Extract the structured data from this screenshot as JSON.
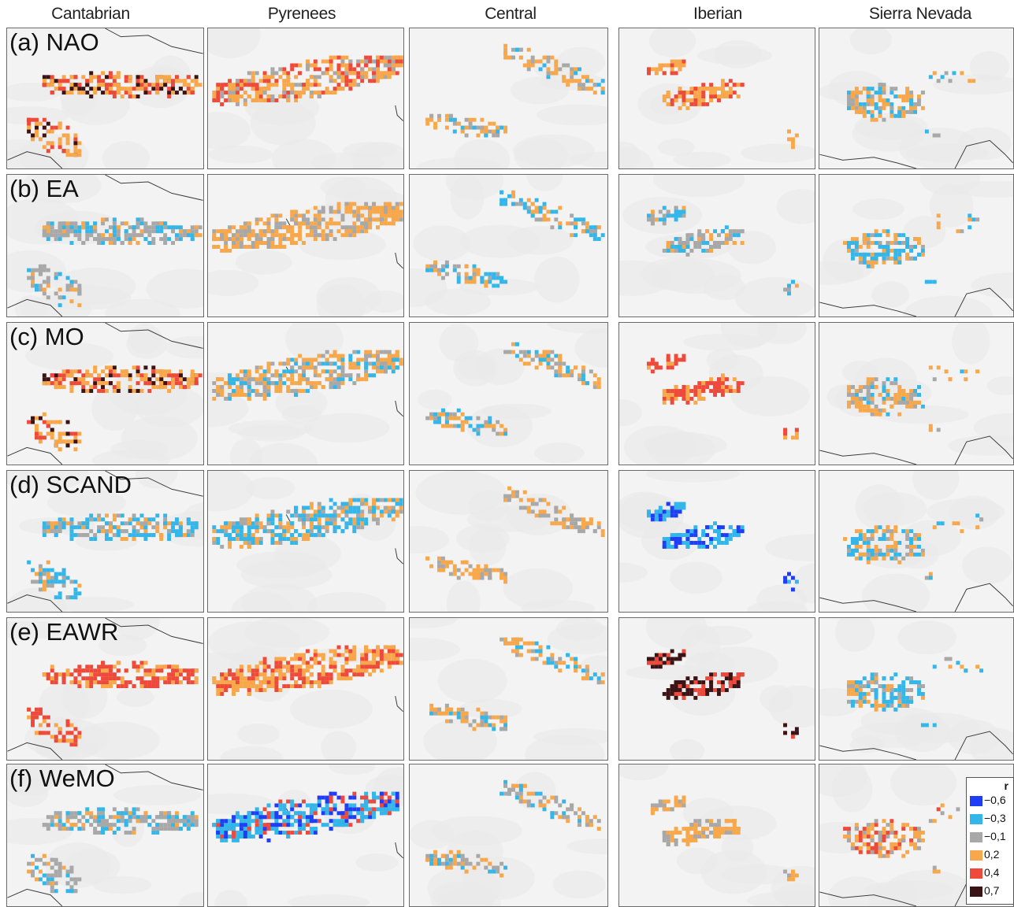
{
  "columns": [
    "Cantabrian",
    "Pyrenees",
    "Central",
    "Iberian",
    "Sierra Nevada"
  ],
  "rows": [
    "(a) NAO",
    "(b) EA",
    "(c) MO",
    "(d) SCAND",
    "(e) EAWR",
    "(f) WeMO"
  ],
  "legend": {
    "title": "r",
    "items": [
      {
        "label": "−0,6",
        "color": "#1f3df5"
      },
      {
        "label": "−0,3",
        "color": "#33b6ea"
      },
      {
        "label": "−0,1",
        "color": "#a8a8a8"
      },
      {
        "label": "0,2",
        "color": "#f8a84a"
      },
      {
        "label": "0,4",
        "color": "#ee4a3c"
      },
      {
        "label": "0,7",
        "color": "#3a1414"
      }
    ]
  },
  "colors": {
    "blue_dark": "#1f3df5",
    "blue": "#33b6ea",
    "grey": "#a8a8a8",
    "orange": "#f8a84a",
    "red": "#ee4a3c",
    "darkred": "#3a1414",
    "coastline": "#3c3c3c",
    "background": "#f3f3f3"
  },
  "panel_dominant_colors": [
    [
      "orange,red,darkred",
      "orange,red,grey",
      "orange,grey,blue",
      "orange,red",
      "orange,blue,grey"
    ],
    [
      "grey,blue,orange",
      "orange,grey",
      "blue,orange,grey",
      "grey,blue,orange",
      "blue,orange,grey"
    ],
    [
      "orange,red,darkred",
      "orange,grey,blue",
      "orange,grey,blue",
      "red,orange",
      "orange,grey,blue"
    ],
    [
      "blue,grey,orange",
      "blue,orange,grey",
      "orange,grey",
      "blue,blue_dark",
      "orange,blue,grey"
    ],
    [
      "red,orange",
      "orange,red",
      "orange,grey,blue",
      "darkred,red",
      "blue,orange,grey"
    ],
    [
      "grey,blue,orange",
      "blue,blue_dark,red",
      "grey,orange,blue",
      "orange,grey",
      "orange,red,grey"
    ]
  ]
}
